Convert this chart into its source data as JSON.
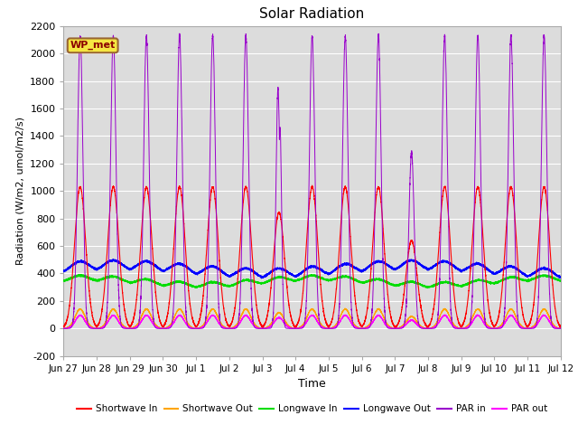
{
  "title": "Solar Radiation",
  "xlabel": "Time",
  "ylabel": "Radiation (W/m2, umol/m2/s)",
  "ylim": [
    -200,
    2200
  ],
  "yticks": [
    -200,
    0,
    200,
    400,
    600,
    800,
    1000,
    1200,
    1400,
    1600,
    1800,
    2000,
    2200
  ],
  "xtick_labels": [
    "Jun 27",
    "Jun 28",
    "Jun 29",
    "Jun 30",
    "Jul 1",
    "Jul 2",
    "Jul 3",
    "Jul 4",
    "Jul 5",
    "Jul 6",
    "Jul 7",
    "Jul 8",
    "Jul 9",
    "Jul 10",
    "Jul 11",
    "Jul 12"
  ],
  "colors": {
    "shortwave_in": "#ff0000",
    "shortwave_out": "#ffa500",
    "longwave_in": "#00dd00",
    "longwave_out": "#0000ff",
    "par_in": "#9900cc",
    "par_out": "#ff00ff"
  },
  "legend_labels": [
    "Shortwave In",
    "Shortwave Out",
    "Longwave In",
    "Longwave Out",
    "PAR in",
    "PAR out"
  ],
  "watermark": "WP_met",
  "background_color": "#dcdcdc",
  "num_days": 15,
  "points_per_day": 480,
  "shortwave_in_peak": 1030,
  "shortwave_out_peak": 140,
  "longwave_in_base": 340,
  "longwave_out_base": 385,
  "par_in_peak": 2130,
  "par_out_peak": 95
}
